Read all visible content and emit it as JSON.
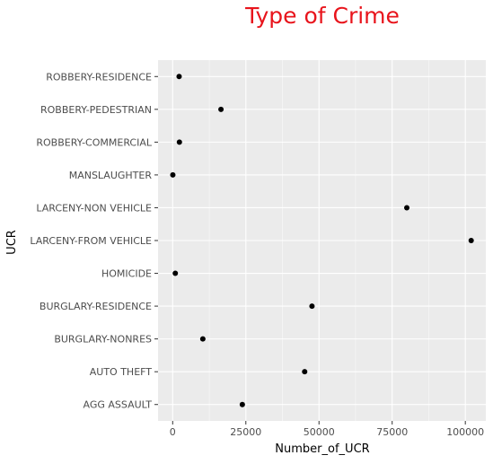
{
  "chart_data": {
    "type": "scatter",
    "title": "Type of Crime",
    "xlabel": "Number_of_UCR",
    "ylabel": "UCR",
    "xlim": [
      -5000,
      107000
    ],
    "x_ticks": [
      0,
      25000,
      50000,
      75000,
      100000
    ],
    "x_tick_labels": [
      "0",
      "25000",
      "50000",
      "75000",
      "100000"
    ],
    "categories": [
      "AGG ASSAULT",
      "AUTO THEFT",
      "BURGLARY-NONRES",
      "BURGLARY-RESIDENCE",
      "HOMICIDE",
      "LARCENY-FROM VEHICLE",
      "LARCENY-NON VEHICLE",
      "MANSLAUGHTER",
      "ROBBERY-COMMERCIAL",
      "ROBBERY-PEDESTRIAN",
      "ROBBERY-RESIDENCE"
    ],
    "values": [
      23800,
      45100,
      10300,
      47600,
      900,
      102000,
      80000,
      50,
      2300,
      16500,
      2200
    ],
    "grid": true,
    "colors": {
      "title": "#e8141c",
      "panel": "#ebebeb",
      "grid": "#ffffff",
      "point": "#000000"
    }
  }
}
